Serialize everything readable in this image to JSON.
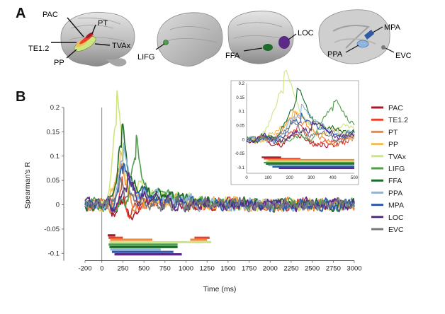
{
  "panel_labels": {
    "a": "A",
    "b": "B"
  },
  "brains": {
    "brain1": [
      "PAC",
      "PT",
      "TE1.2",
      "TVAx",
      "PP"
    ],
    "brain2": [
      "LIFG"
    ],
    "brain3": [
      "FFA",
      "LOC"
    ],
    "brain4": [
      "MPA",
      "PPA",
      "EVC"
    ]
  },
  "colors": {
    "PAC": "#a8182b",
    "TE1.2": "#e8432a",
    "PT": "#f08a3c",
    "PP": "#f6be59",
    "TVAx": "#cde67f",
    "LIFG": "#4e9e4a",
    "FFA": "#1b6b2a",
    "PPA": "#8eb6dc",
    "MPA": "#2f5aa8",
    "LOC": "#5a2a86",
    "EVC": "#7a7a7a"
  },
  "chart_data": [
    {
      "type": "line",
      "xlabel": "Time (ms)",
      "ylabel": "Spearman's R",
      "xlim": [
        -200,
        3000
      ],
      "ylim": [
        -0.12,
        0.2
      ],
      "xticks": [
        -200,
        0,
        250,
        500,
        750,
        1000,
        1250,
        1500,
        1750,
        2000,
        2250,
        2500,
        2750,
        3000
      ],
      "yticks": [
        -0.1,
        -0.05,
        0,
        0.05,
        0.1,
        0.15,
        0.2
      ],
      "ytick_labels": [
        "-0.1",
        "-0.05",
        "0",
        "0.05",
        "0.1",
        "0.15",
        "0.2"
      ],
      "onset_line_x": 0,
      "legend_position": "right",
      "series": [
        {
          "name": "PAC",
          "peak_x": 250,
          "peak_y": 0.05,
          "dip_x": 300,
          "dip_y": -0.07
        },
        {
          "name": "TE1.2",
          "peak_x": 230,
          "peak_y": 0.045,
          "dip_x": 320,
          "dip_y": -0.04
        },
        {
          "name": "PT",
          "peak_x": 220,
          "peak_y": 0.07,
          "dip_x": 400,
          "dip_y": -0.03
        },
        {
          "name": "PP",
          "peak_x": 210,
          "peak_y": 0.075,
          "dip_x": 600,
          "dip_y": -0.01
        },
        {
          "name": "TVAx",
          "peak_x": 170,
          "peak_y": 0.165,
          "dip_x": 800,
          "dip_y": 0
        },
        {
          "name": "LIFG",
          "peak_x": 400,
          "peak_y": 0.1,
          "dip_x": 1200,
          "dip_y": 0.005
        },
        {
          "name": "FFA",
          "peak_x": 230,
          "peak_y": 0.12,
          "dip_x": 1000,
          "dip_y": 0.01
        },
        {
          "name": "PPA",
          "peak_x": 250,
          "peak_y": 0.085,
          "dip_x": 900,
          "dip_y": 0.005
        },
        {
          "name": "MPA",
          "peak_x": 250,
          "peak_y": 0.065,
          "dip_x": 900,
          "dip_y": 0.0
        },
        {
          "name": "LOC",
          "peak_x": 300,
          "peak_y": 0.045,
          "dip_x": 900,
          "dip_y": -0.01
        },
        {
          "name": "EVC",
          "peak_x": 200,
          "peak_y": 0.035,
          "dip_x": 700,
          "dip_y": -0.005
        }
      ],
      "significance_bars": [
        {
          "name": "PAC",
          "y": -0.063,
          "start": 70,
          "end": 160
        },
        {
          "name": "TE1.2",
          "y": -0.068,
          "start": 80,
          "end": 250
        },
        {
          "name": "TE1.2",
          "y": -0.068,
          "start": 1100,
          "end": 1280
        },
        {
          "name": "PT",
          "y": -0.072,
          "start": 100,
          "end": 600
        },
        {
          "name": "PT",
          "y": -0.072,
          "start": 1050,
          "end": 1250
        },
        {
          "name": "TVAx",
          "y": -0.077,
          "start": 90,
          "end": 1300
        },
        {
          "name": "LIFG",
          "y": -0.082,
          "start": 80,
          "end": 900
        },
        {
          "name": "FFA",
          "y": -0.087,
          "start": 90,
          "end": 900
        },
        {
          "name": "PPA",
          "y": -0.092,
          "start": 100,
          "end": 700
        },
        {
          "name": "MPA",
          "y": -0.097,
          "start": 120,
          "end": 850
        },
        {
          "name": "LOC",
          "y": -0.102,
          "start": 150,
          "end": 950
        }
      ]
    },
    {
      "type": "line",
      "xlim": [
        0,
        500
      ],
      "ylim": [
        -0.12,
        0.2
      ],
      "xticks": [
        0,
        100,
        200,
        300,
        400,
        500
      ],
      "yticks": [
        -0.1,
        -0.05,
        0,
        0.05,
        0.1,
        0.15,
        0.2
      ],
      "ytick_labels": [
        "-0.1",
        "-0.05",
        "0",
        "0.05",
        "0.1",
        "0.15",
        "0.2"
      ]
    }
  ]
}
